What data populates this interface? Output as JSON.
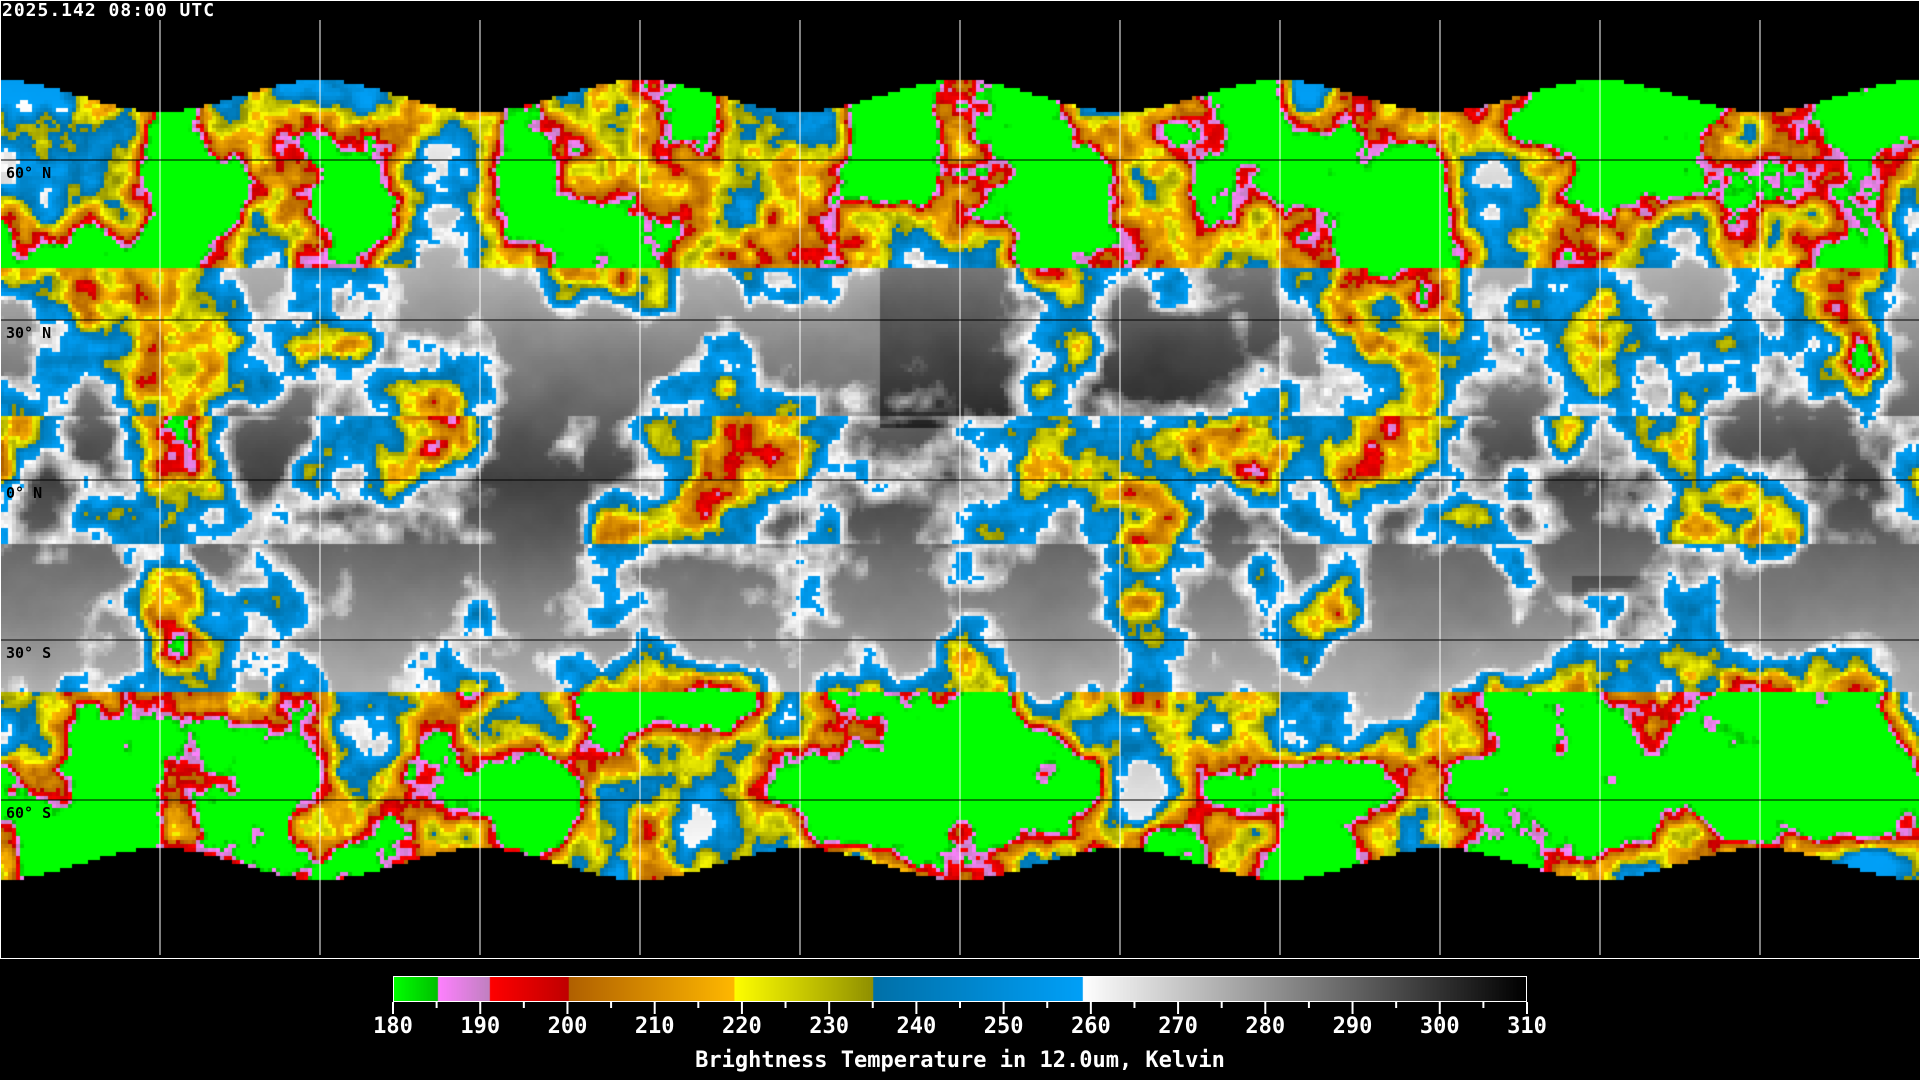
{
  "header": {
    "timestamp": "2025.142 08:00 UTC"
  },
  "map": {
    "projection": "equirectangular",
    "gridline_spacing_deg": 30,
    "lat_labels": [
      "60° N",
      "30° N",
      "0° N",
      "30° S",
      "60° S"
    ]
  },
  "colorbar": {
    "min": 180,
    "max": 310,
    "tick_labels": [
      "180",
      "190",
      "200",
      "210",
      "220",
      "230",
      "240",
      "250",
      "260",
      "270",
      "280",
      "290",
      "300",
      "310"
    ],
    "caption": "Brightness Temperature in 12.0um, Kelvin",
    "segments": [
      {
        "from": 180,
        "to": 185,
        "colors": [
          "#00ff00",
          "#00c000"
        ]
      },
      {
        "from": 185,
        "to": 191,
        "colors": [
          "#ff80ff",
          "#c080c0"
        ]
      },
      {
        "from": 191,
        "to": 200,
        "colors": [
          "#ff0000",
          "#c00000"
        ]
      },
      {
        "from": 200,
        "to": 219,
        "colors": [
          "#b06000",
          "#ffb800"
        ]
      },
      {
        "from": 219,
        "to": 235,
        "colors": [
          "#ffff00",
          "#909000"
        ]
      },
      {
        "from": 235,
        "to": 259,
        "colors": [
          "#0070a8",
          "#00a0f8"
        ]
      },
      {
        "from": 259,
        "to": 310,
        "colors": [
          "#ffffff",
          "#000000"
        ]
      }
    ]
  }
}
